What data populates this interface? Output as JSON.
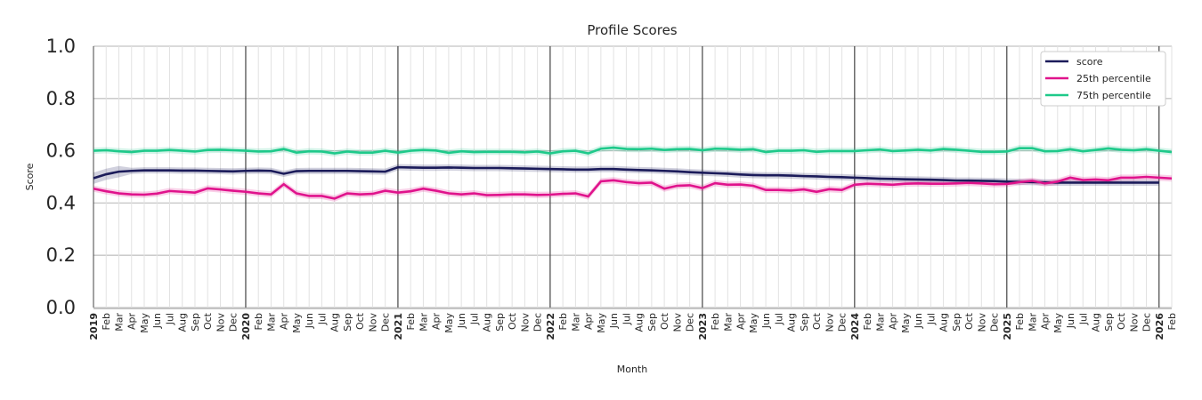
{
  "chart_data": {
    "type": "line",
    "title": "Profile Scores",
    "xlabel": "Month",
    "ylabel": "Score",
    "ylim": [
      0,
      1.0
    ],
    "yticks": [
      "0.0",
      "0.2",
      "0.4",
      "0.6",
      "0.8",
      "1.0"
    ],
    "x_start": "2019-01",
    "x_end": "2026-02",
    "month_labels": [
      "Jan",
      "Feb",
      "Mar",
      "Apr",
      "May",
      "Jun",
      "Jul",
      "Aug",
      "Sep",
      "Oct",
      "Nov",
      "Dec"
    ],
    "grid": true,
    "legend_placement": "top-right",
    "band_halfwidth": 0.012,
    "series": [
      {
        "name": "score",
        "color": "#1b1b5a",
        "values": [
          0.495,
          0.51,
          0.52,
          0.523,
          0.525,
          0.525,
          0.525,
          0.524,
          0.524,
          0.523,
          0.522,
          0.521,
          0.523,
          0.524,
          0.523,
          0.512,
          0.522,
          0.523,
          0.523,
          0.523,
          0.523,
          0.522,
          0.521,
          0.52,
          0.537,
          0.536,
          0.535,
          0.535,
          0.536,
          0.535,
          0.534,
          0.534,
          0.534,
          0.533,
          0.532,
          0.531,
          0.53,
          0.529,
          0.528,
          0.528,
          0.53,
          0.53,
          0.528,
          0.526,
          0.525,
          0.523,
          0.521,
          0.518,
          0.516,
          0.514,
          0.512,
          0.509,
          0.507,
          0.506,
          0.506,
          0.505,
          0.503,
          0.502,
          0.5,
          0.499,
          0.497,
          0.495,
          0.493,
          0.492,
          0.491,
          0.49,
          0.489,
          0.488,
          0.486,
          0.486,
          0.485,
          0.484,
          0.482,
          0.481,
          0.48,
          0.479,
          0.478,
          0.478,
          0.478,
          0.478,
          0.478,
          0.478,
          0.478,
          0.478,
          0.478,
          null
        ]
      },
      {
        "name": "25th percentile",
        "color": "#e0138c",
        "values": [
          0.455,
          0.445,
          0.437,
          0.433,
          0.432,
          0.436,
          0.446,
          0.443,
          0.44,
          0.456,
          0.452,
          0.447,
          0.443,
          0.437,
          0.433,
          0.472,
          0.437,
          0.427,
          0.427,
          0.417,
          0.437,
          0.433,
          0.435,
          0.447,
          0.44,
          0.445,
          0.455,
          0.447,
          0.437,
          0.433,
          0.437,
          0.43,
          0.431,
          0.433,
          0.433,
          0.431,
          0.432,
          0.435,
          0.437,
          0.425,
          0.483,
          0.487,
          0.48,
          0.476,
          0.478,
          0.455,
          0.466,
          0.468,
          0.457,
          0.476,
          0.47,
          0.471,
          0.466,
          0.45,
          0.45,
          0.448,
          0.452,
          0.443,
          0.453,
          0.45,
          0.47,
          0.474,
          0.472,
          0.47,
          0.474,
          0.475,
          0.474,
          0.474,
          0.475,
          0.477,
          0.475,
          0.472,
          0.473,
          0.48,
          0.485,
          0.475,
          0.482,
          0.497,
          0.488,
          0.49,
          0.487,
          0.497,
          0.497,
          0.5,
          0.497,
          0.494
        ]
      },
      {
        "name": "75th percentile",
        "color": "#1ec98a",
        "values": [
          0.6,
          0.602,
          0.598,
          0.595,
          0.6,
          0.6,
          0.603,
          0.6,
          0.597,
          0.603,
          0.604,
          0.602,
          0.6,
          0.597,
          0.598,
          0.607,
          0.593,
          0.598,
          0.597,
          0.59,
          0.597,
          0.593,
          0.593,
          0.6,
          0.593,
          0.6,
          0.603,
          0.601,
          0.592,
          0.598,
          0.595,
          0.596,
          0.596,
          0.596,
          0.594,
          0.597,
          0.59,
          0.598,
          0.6,
          0.59,
          0.608,
          0.612,
          0.607,
          0.606,
          0.608,
          0.603,
          0.606,
          0.607,
          0.602,
          0.608,
          0.607,
          0.604,
          0.606,
          0.595,
          0.6,
          0.6,
          0.602,
          0.596,
          0.599,
          0.599,
          0.599,
          0.602,
          0.605,
          0.599,
          0.601,
          0.604,
          0.601,
          0.607,
          0.604,
          0.6,
          0.596,
          0.596,
          0.597,
          0.61,
          0.61,
          0.598,
          0.599,
          0.606,
          0.598,
          0.603,
          0.609,
          0.604,
          0.602,
          0.606,
          0.6,
          0.595
        ]
      }
    ]
  }
}
